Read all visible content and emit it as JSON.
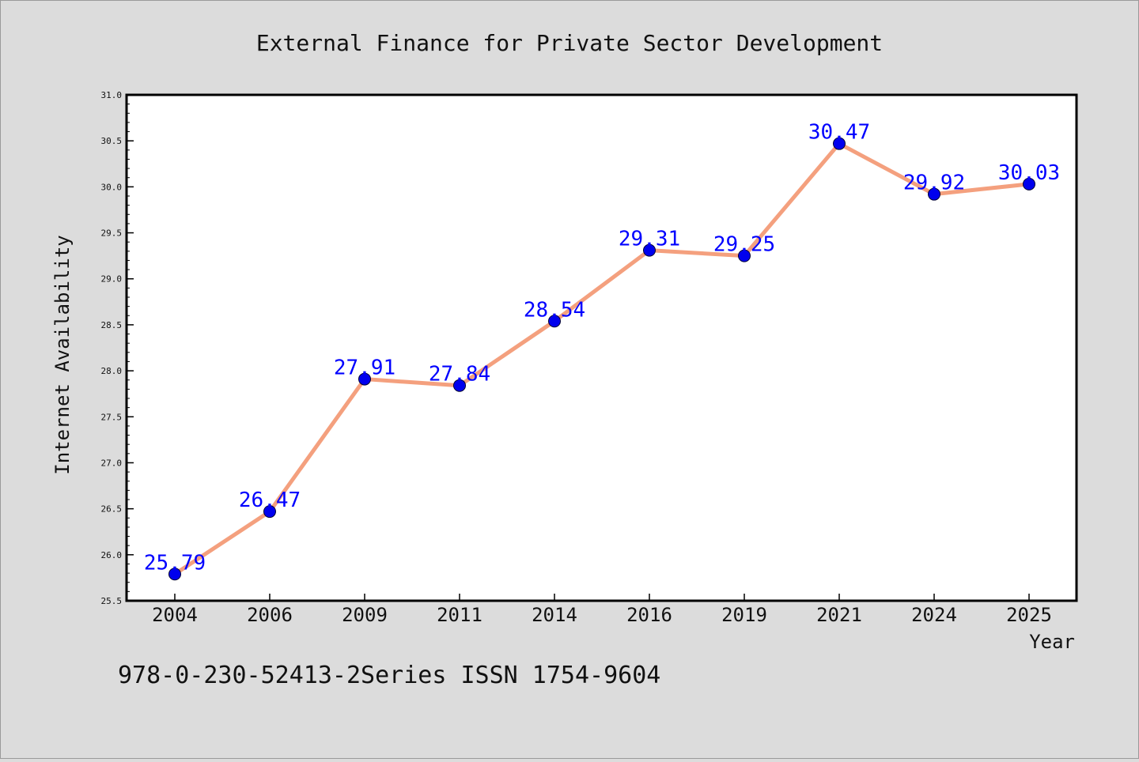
{
  "figure": {
    "background": "#dcdcdc",
    "footer_text": "978-0-230-52413-2Series ISSN 1754-9604"
  },
  "chart_data": {
    "type": "line",
    "title": "External Finance for Private Sector Development",
    "xlabel": "Year",
    "ylabel": "Internet Availability",
    "categories": [
      "2004",
      "2006",
      "2009",
      "2011",
      "2014",
      "2016",
      "2019",
      "2021",
      "2024",
      "2025"
    ],
    "series": [
      {
        "values": [
          25.79,
          26.47,
          27.91,
          27.84,
          28.54,
          29.31,
          29.25,
          30.47,
          29.92,
          30.03
        ],
        "labels": [
          "25.79",
          "26.47",
          "27.91",
          "27.84",
          "28.54",
          "29.31",
          "29.25",
          "30.47",
          "29.92",
          "30.03"
        ],
        "line_color": "#f4a07e",
        "marker_color": "#0000ee",
        "label_color": "#0000ff"
      }
    ],
    "ylim": [
      25.5,
      31.0
    ],
    "yticks": [
      "25.5",
      "26.0",
      "26.5",
      "27.0",
      "27.5",
      "28.0",
      "28.5",
      "29.0",
      "29.5",
      "30.0",
      "30.5",
      "31.0"
    ],
    "grid": false,
    "legend": false
  }
}
